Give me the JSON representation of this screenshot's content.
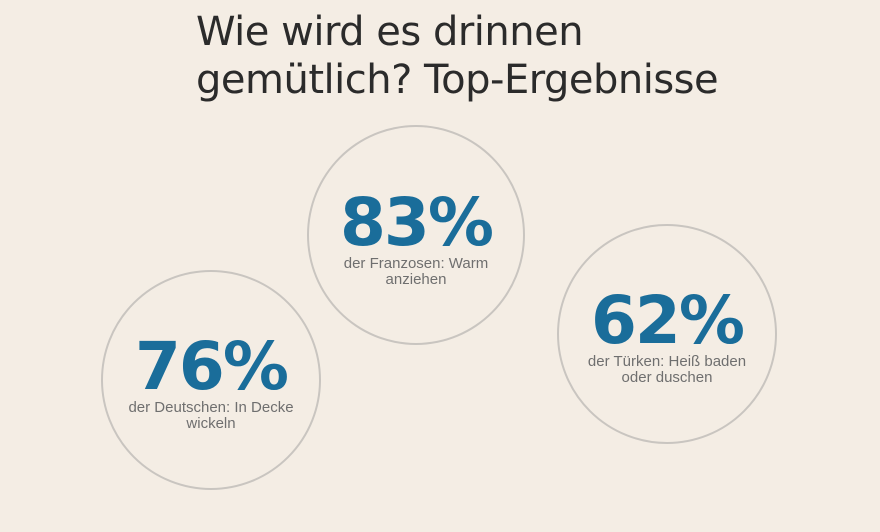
{
  "title": {
    "line1": "Wie wird es drinnen",
    "line2": "gemütlich? Top-Ergebnisse"
  },
  "stats": [
    {
      "value": "83%",
      "label": "der Franzosen: Warm anziehen"
    },
    {
      "value": "76%",
      "label": "der Deutschen: In Decke wickeln"
    },
    {
      "value": "62%",
      "label": "der Türken: Heiß baden oder duschen"
    }
  ],
  "colors": {
    "background": "#f4ede4",
    "accent": "#1a6d9a",
    "title": "#2b2b2b",
    "label": "#6f6f6f",
    "circle_border": "#c9c5c0"
  }
}
